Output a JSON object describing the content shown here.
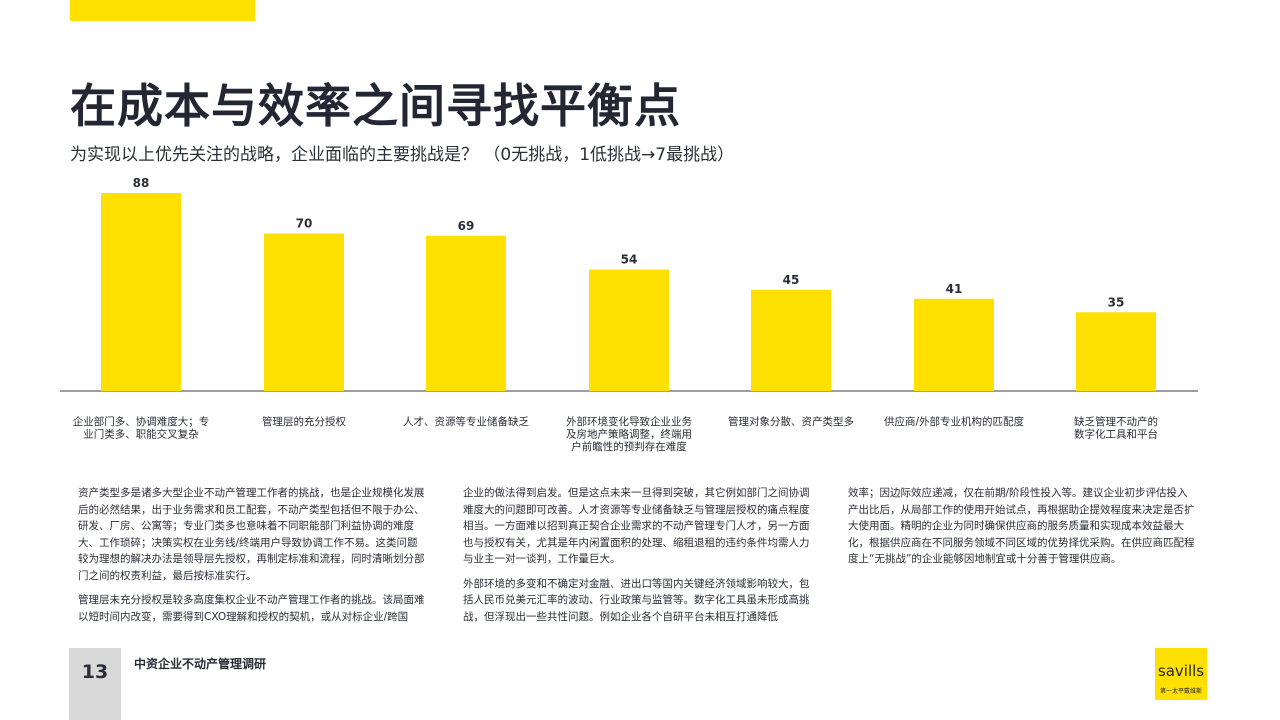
{
  "page": {
    "title": "在成本与效率之间寻找平衡点",
    "subtitle": "为实现以上优先关注的战略，企业面临的主要挑战是？ （0无挑战，1低挑战→7最挑战）"
  },
  "colors": {
    "accent": "#ffe000",
    "axis": "#7f7f7f",
    "text": "#2a2e38"
  },
  "chart_data": {
    "type": "bar",
    "categories": [
      "企业部门多、协调难度大；专 业门类多、职能交叉复杂",
      "管理层的充分授权",
      "人才、资源等专业储备缺乏",
      "外部环境变化导致企业业务 及房地产策略调整，终端用 户前瞻性的预判存在难度",
      "管理对象分散、资产类型多",
      "供应商/外部专业机构的匹配度",
      "缺乏管理不动产的 数字化工具和平台"
    ],
    "category_lines": [
      [
        "企业部门多、协调难度大；专",
        "业门类多、职能交叉复杂"
      ],
      [
        "管理层的充分授权"
      ],
      [
        "人才、资源等专业储备缺乏"
      ],
      [
        "外部环境变化导致企业业务",
        "及房地产策略调整，终端用",
        "户前瞻性的预判存在难度"
      ],
      [
        "管理对象分散、资产类型多"
      ],
      [
        "供应商/外部专业机构的匹配度"
      ],
      [
        "缺乏管理不动产的",
        "数字化工具和平台"
      ]
    ],
    "values": [
      88,
      70,
      69,
      54,
      45,
      41,
      35
    ],
    "ylim": [
      0,
      100
    ],
    "grid": false,
    "legend": "none",
    "bar_color": "#ffe000"
  },
  "body_text": {
    "col1": [
      "资产类型多是诸多大型企业不动产管理工作者的挑战，也是企业规模化发展后的必然结果，出于业务需求和员工配套，不动产类型包括但不限于办公、研发、厂房、公寓等；专业门类多也意味着不同职能部门利益协调的难度大、工作琐碎；决策实权在业务线/终端用户导致协调工作不易。这类问题较为理想的解决办法是领导层先授权，再制定标准和流程，同时清晰划分部门之间的权责利益，最后按标准实行。",
      "管理层未充分授权是较多高度集权企业不动产管理工作者的挑战。该局面难以短时间内改变，需要得到CXO理解和授权的契机，或从对标企业/跨国"
    ],
    "col2": [
      "企业的做法得到启发。但是这点未来一旦得到突破，其它例如部门之间协调难度大的问题即可改善。人才资源等专业储备缺乏与管理层授权的痛点程度相当。一方面难以招到真正契合企业需求的不动产管理专门人才，另一方面也与授权有关，尤其是年内闲置面积的处理、缩租退租的违约条件均需人力与业主一对一谈判，工作量巨大。",
      "外部环境的多变和不确定对金融、进出口等国内关键经济领域影响较大，包括人民币兑美元汇率的波动、行业政策与监管等。数字化工具虽未形成高挑战，但浮现出一些共性问题。例如企业各个自研平台未相互打通降低"
    ],
    "col3": [
      "效率；因边际效应递减，仅在前期/阶段性投入等。建议企业初步评估投入产出比后，从局部工作的使用开始试点，再根据助企提效程度来决定是否扩大使用面。精明的企业为同时确保供应商的服务质量和实现成本效益最大化，根据供应商在不同服务领域不同区域的优势择优采购。在供应商匹配程度上“无挑战”的企业能够因地制宜或十分善于管理供应商。"
    ]
  },
  "footer": {
    "page_number": "13",
    "label": "中资企业不动产管理调研",
    "logo_text": "savills",
    "logo_sub": "第一太平戴维斯"
  }
}
